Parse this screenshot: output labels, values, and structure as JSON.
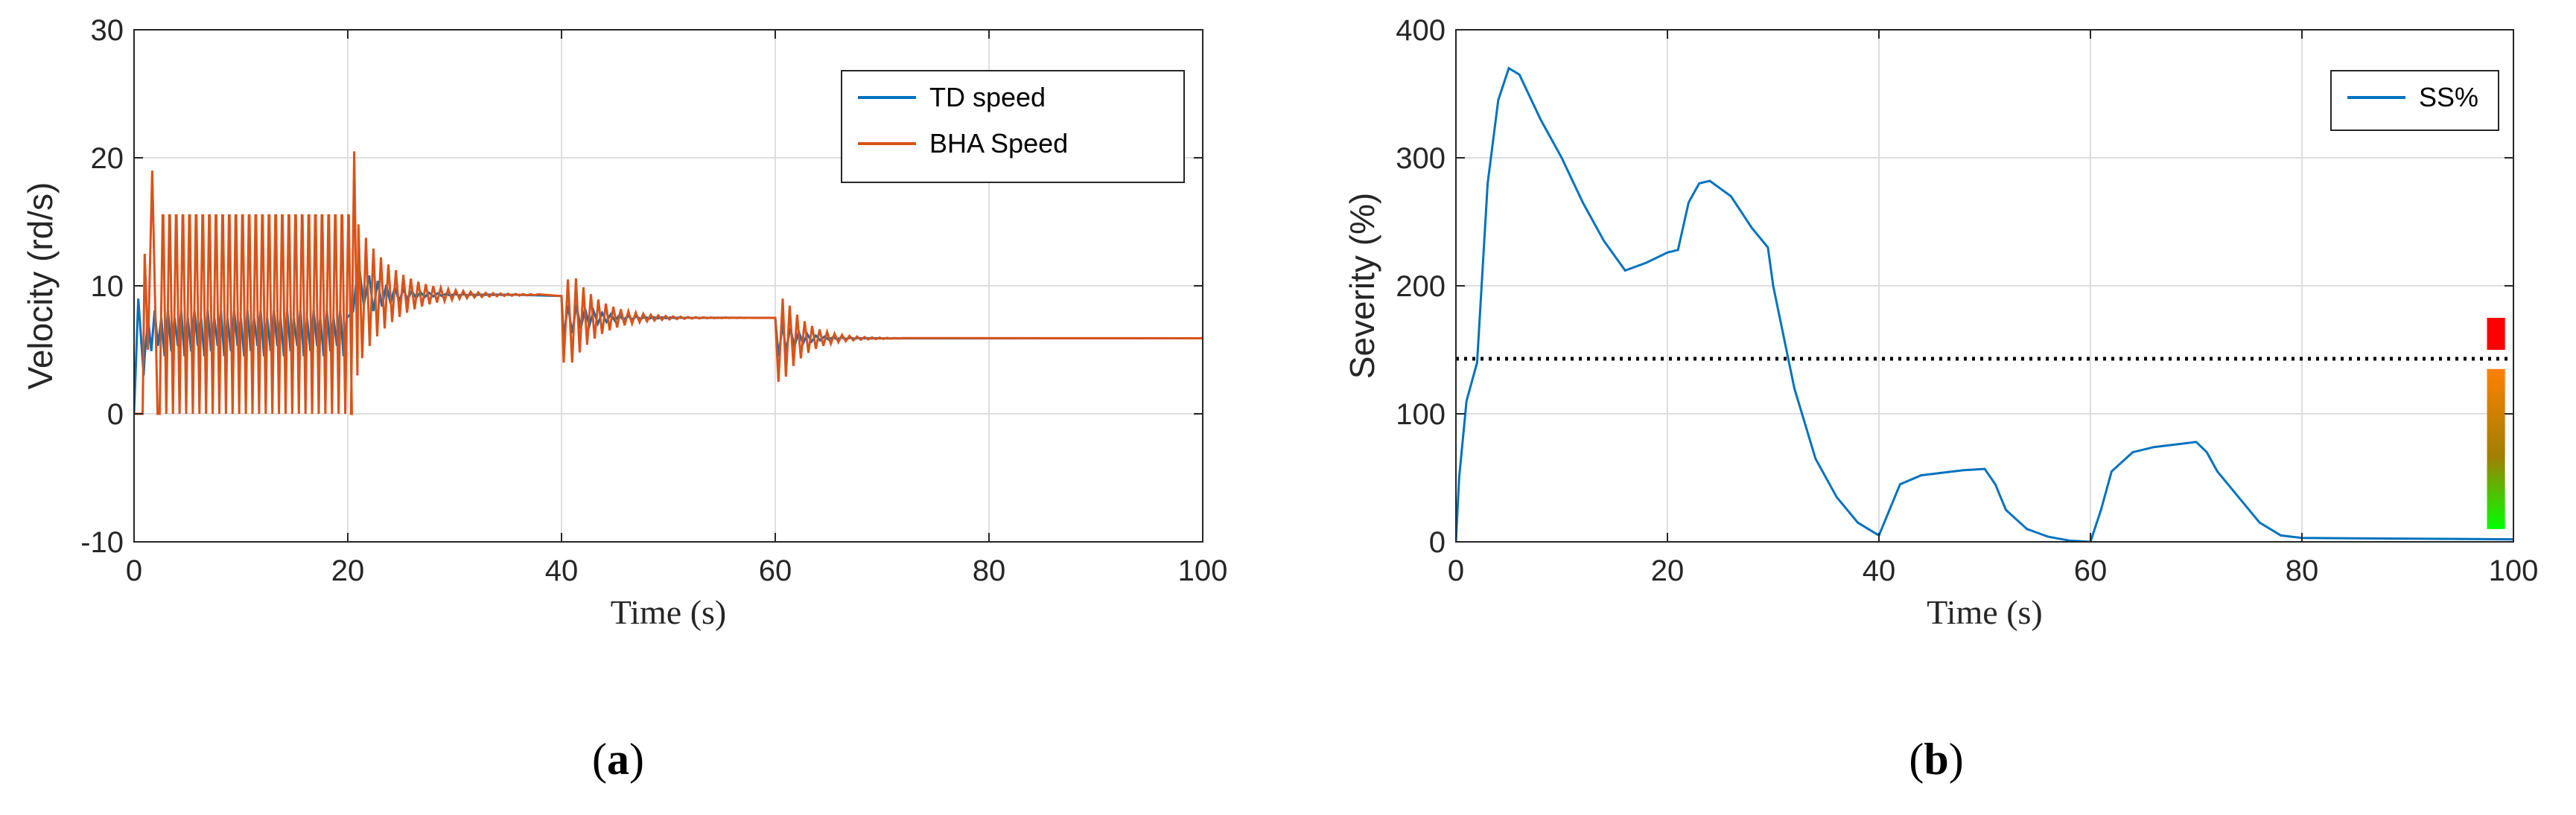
{
  "chart_data": [
    {
      "type": "line",
      "panel_label": "a",
      "title": "",
      "xlabel": "Time (s)",
      "ylabel": "Velocity (rd/s)",
      "xlim": [
        0,
        100
      ],
      "ylim": [
        -10,
        30
      ],
      "x_ticks": [
        0,
        20,
        40,
        60,
        80,
        100
      ],
      "y_ticks": [
        -10,
        0,
        10,
        20,
        30
      ],
      "grid": true,
      "legend_position": "top-right",
      "series": [
        {
          "name": "TD speed",
          "color": "#0072BD",
          "description_points": [
            [
              0,
              0
            ],
            [
              0.6,
              9
            ],
            [
              1,
              5
            ],
            [
              5,
              6.5
            ],
            [
              10,
              6
            ],
            [
              15,
              6.2
            ],
            [
              20,
              6.5
            ],
            [
              21,
              11
            ],
            [
              23,
              9.5
            ],
            [
              25,
              9.3
            ],
            [
              30,
              9.3
            ],
            [
              40,
              9.2
            ],
            [
              40.4,
              6
            ],
            [
              42,
              8
            ],
            [
              45,
              7.6
            ],
            [
              50,
              7.6
            ],
            [
              60,
              7.5
            ],
            [
              60.5,
              5
            ],
            [
              62,
              6
            ],
            [
              65,
              5.9
            ],
            [
              70,
              5.9
            ],
            [
              100,
              5.9
            ]
          ]
        },
        {
          "name": "BHA Speed",
          "color": "#D95319",
          "description_points": [
            [
              0,
              0
            ],
            [
              1,
              12.5
            ],
            [
              1.7,
              19
            ],
            [
              2.5,
              0
            ],
            [
              3,
              15.5
            ],
            [
              20,
              15.5
            ],
            [
              20.5,
              20.5
            ],
            [
              21,
              4
            ],
            [
              22,
              14
            ],
            [
              23,
              6
            ],
            [
              25,
              11
            ],
            [
              27,
              8.5
            ],
            [
              30,
              9.5
            ],
            [
              35,
              9.3
            ],
            [
              40,
              9.2
            ],
            [
              40.4,
              4
            ],
            [
              41,
              10.5
            ],
            [
              42,
              6
            ],
            [
              45,
              8
            ],
            [
              50,
              7.5
            ],
            [
              60,
              7.5
            ],
            [
              60.3,
              2.5
            ],
            [
              60.8,
              9
            ],
            [
              62,
              4.5
            ],
            [
              65,
              6.2
            ],
            [
              70,
              5.9
            ],
            [
              100,
              5.9
            ]
          ]
        }
      ]
    },
    {
      "type": "line",
      "panel_label": "b",
      "title": "",
      "xlabel": "Time (s)",
      "ylabel": "Severity (%)",
      "xlim": [
        0,
        100
      ],
      "ylim": [
        0,
        400
      ],
      "x_ticks": [
        0,
        20,
        40,
        60,
        80,
        100
      ],
      "y_ticks": [
        0,
        100,
        200,
        300,
        400
      ],
      "grid": true,
      "legend_position": "top-right",
      "threshold_line": 143,
      "severity_scale": [
        {
          "from": 150,
          "to": 175,
          "color": "#FF0000"
        },
        {
          "from": 10,
          "to": 135,
          "color_top": "#FF8000",
          "color_bottom": "#00FF00"
        }
      ],
      "series": [
        {
          "name": "SS%",
          "color": "#0072BD",
          "x": [
            0,
            0.3,
            1,
            2,
            3,
            4,
            5,
            6,
            8,
            10,
            12,
            14,
            16,
            18,
            20,
            21,
            22,
            23,
            24,
            26,
            28,
            29.5,
            30,
            32,
            34,
            36,
            38,
            40,
            41,
            42,
            44,
            46,
            48,
            50,
            51,
            52,
            54,
            56,
            58,
            60,
            61,
            62,
            64,
            66,
            68,
            70,
            71,
            72,
            74,
            76,
            78,
            80,
            100
          ],
          "y": [
            0,
            50,
            110,
            140,
            280,
            345,
            370,
            365,
            330,
            300,
            265,
            235,
            212,
            218,
            226,
            228,
            265,
            280,
            282,
            270,
            245,
            230,
            200,
            120,
            65,
            35,
            15,
            5,
            25,
            45,
            52,
            54,
            56,
            57,
            45,
            25,
            10,
            4,
            1,
            0,
            25,
            55,
            70,
            74,
            76,
            78,
            70,
            55,
            35,
            15,
            5,
            3,
            2
          ]
        }
      ]
    }
  ]
}
